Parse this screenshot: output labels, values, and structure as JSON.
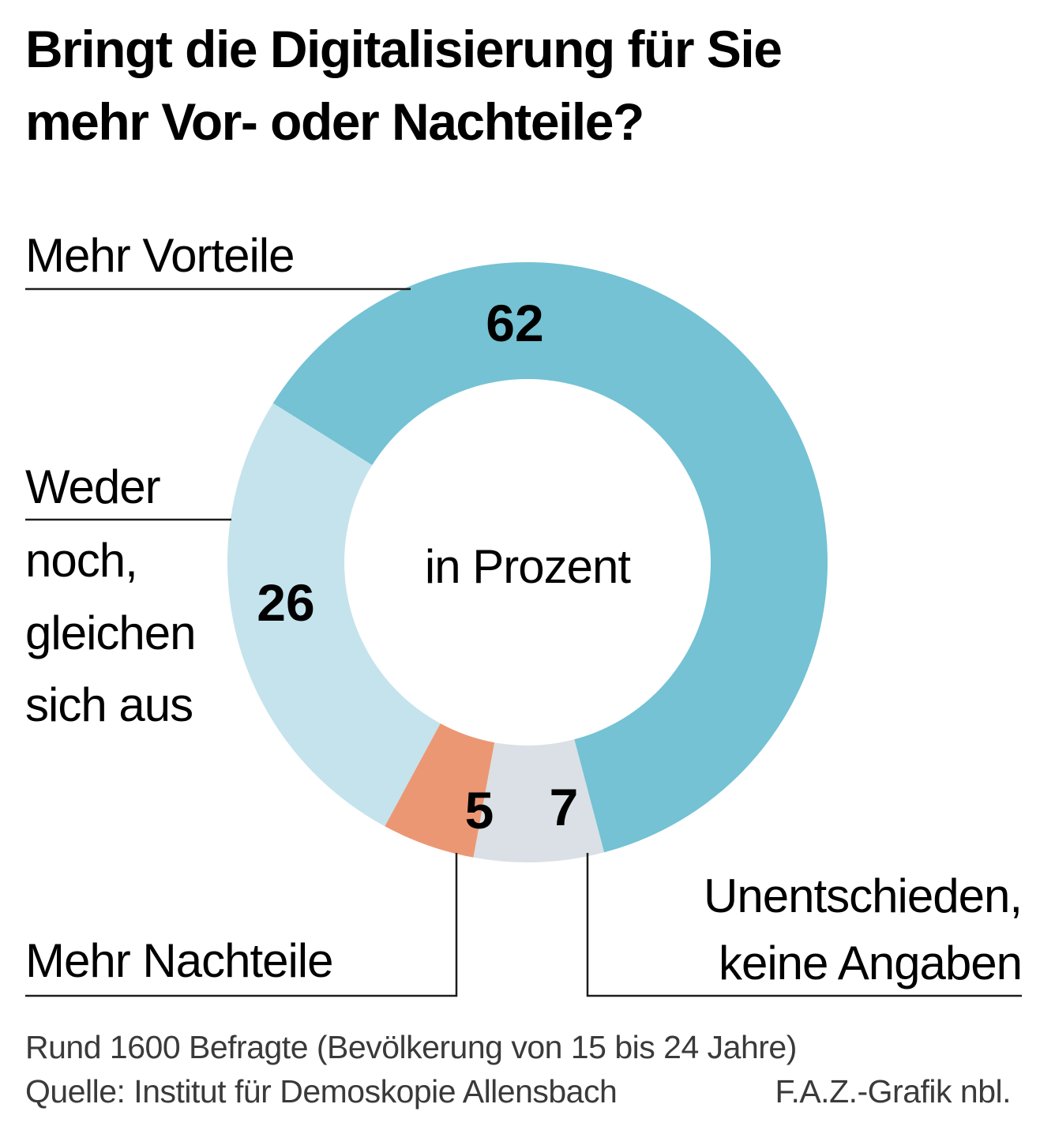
{
  "chart_data": {
    "type": "pie",
    "variant": "donut",
    "title_lines": [
      "Bringt die Digitalisierung für Sie",
      "mehr Vor- oder Nachteile?"
    ],
    "center_label": "in Prozent",
    "unit": "Prozent",
    "slices": [
      {
        "key": "vorteile",
        "label_lines": [
          "Mehr Vorteile"
        ],
        "value": 62,
        "value_label": "62",
        "color": "#74c2d4"
      },
      {
        "key": "unentschieden",
        "label_lines": [
          "Unentschieden,",
          "keine Angaben"
        ],
        "value": 7,
        "value_label": "7",
        "color": "#dae0e5"
      },
      {
        "key": "nachteile",
        "label_lines": [
          "Mehr Nachteile"
        ],
        "value": 5,
        "value_label": "5",
        "color": "#ec9774"
      },
      {
        "key": "weder",
        "label_lines": [
          "Weder",
          "noch,",
          "gleichen",
          "sich aus"
        ],
        "value": 26,
        "value_label": "26",
        "color": "#c5e3ec"
      }
    ],
    "footnote_lines": [
      "Rund 1600 Befragte (Bevölkerung von 15 bis 24 Jahre)",
      "Quelle: Institut für Demoskopie Allensbach"
    ],
    "credit": "F.A.Z.-Grafik nbl."
  }
}
